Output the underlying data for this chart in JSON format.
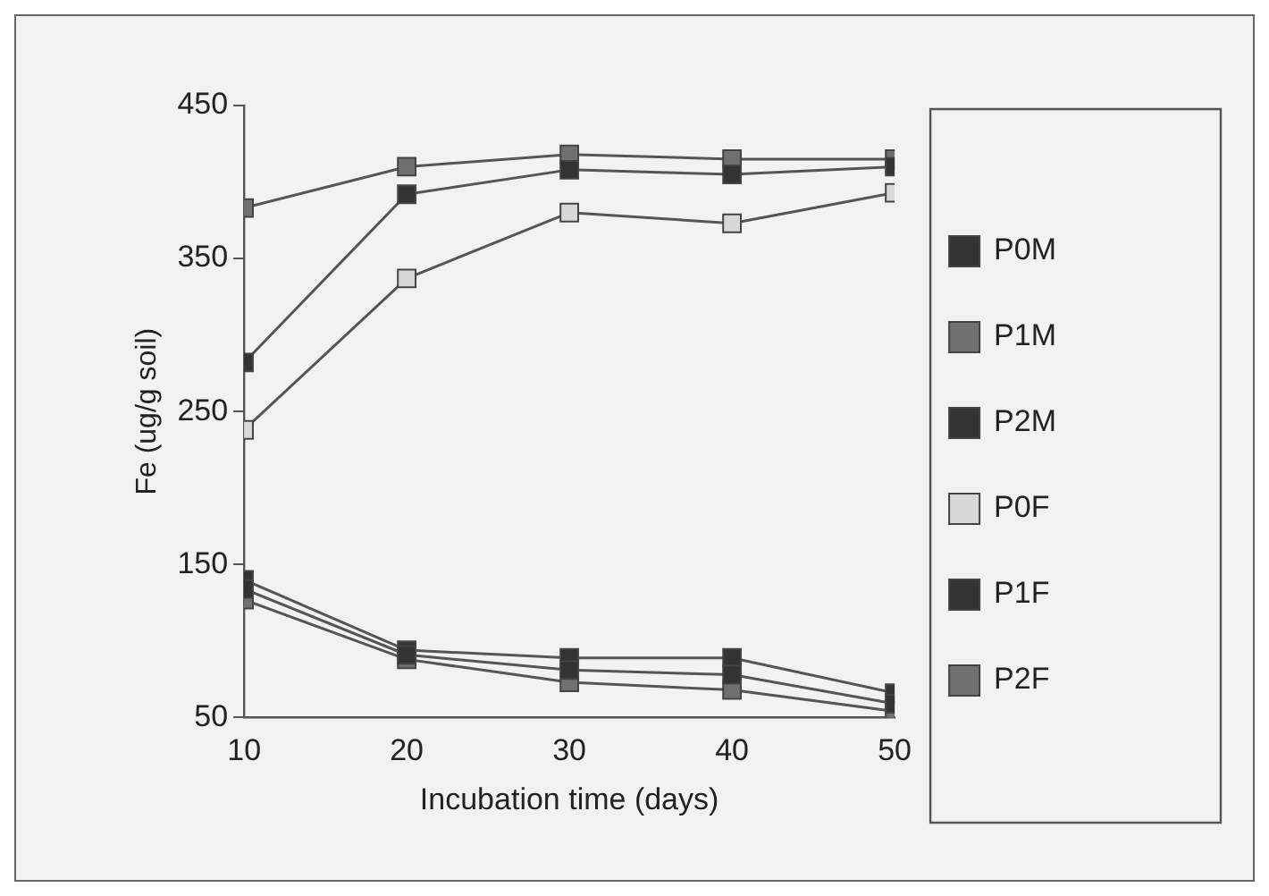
{
  "chart_data": {
    "type": "line",
    "xlabel": "Incubation time (days)",
    "ylabel": "Fe (ug/g soil)",
    "x": [
      10,
      20,
      30,
      40,
      50
    ],
    "series": [
      {
        "name": "P0M",
        "color": "#333333",
        "values": [
          134,
          91,
          81,
          78,
          59
        ]
      },
      {
        "name": "P1M",
        "color": "#707070",
        "values": [
          127,
          88,
          73,
          68,
          54
        ]
      },
      {
        "name": "P2M",
        "color": "#333333",
        "values": [
          140,
          94,
          89,
          89,
          66
        ]
      },
      {
        "name": "P0F",
        "color": "#d8d8d8",
        "values": [
          238,
          337,
          380,
          373,
          393
        ]
      },
      {
        "name": "P1F",
        "color": "#333333",
        "values": [
          282,
          392,
          408,
          405,
          410
        ]
      },
      {
        "name": "P2F",
        "color": "#707070",
        "values": [
          383,
          410,
          418,
          415,
          415
        ]
      }
    ],
    "xlim": [
      10,
      50
    ],
    "xticks": [
      10,
      20,
      30,
      40,
      50
    ],
    "ylim": [
      50,
      450
    ],
    "yticks": [
      50,
      150,
      250,
      350,
      450
    ],
    "grid": false,
    "legend": "right",
    "marker": "square",
    "line_style": "solid"
  }
}
